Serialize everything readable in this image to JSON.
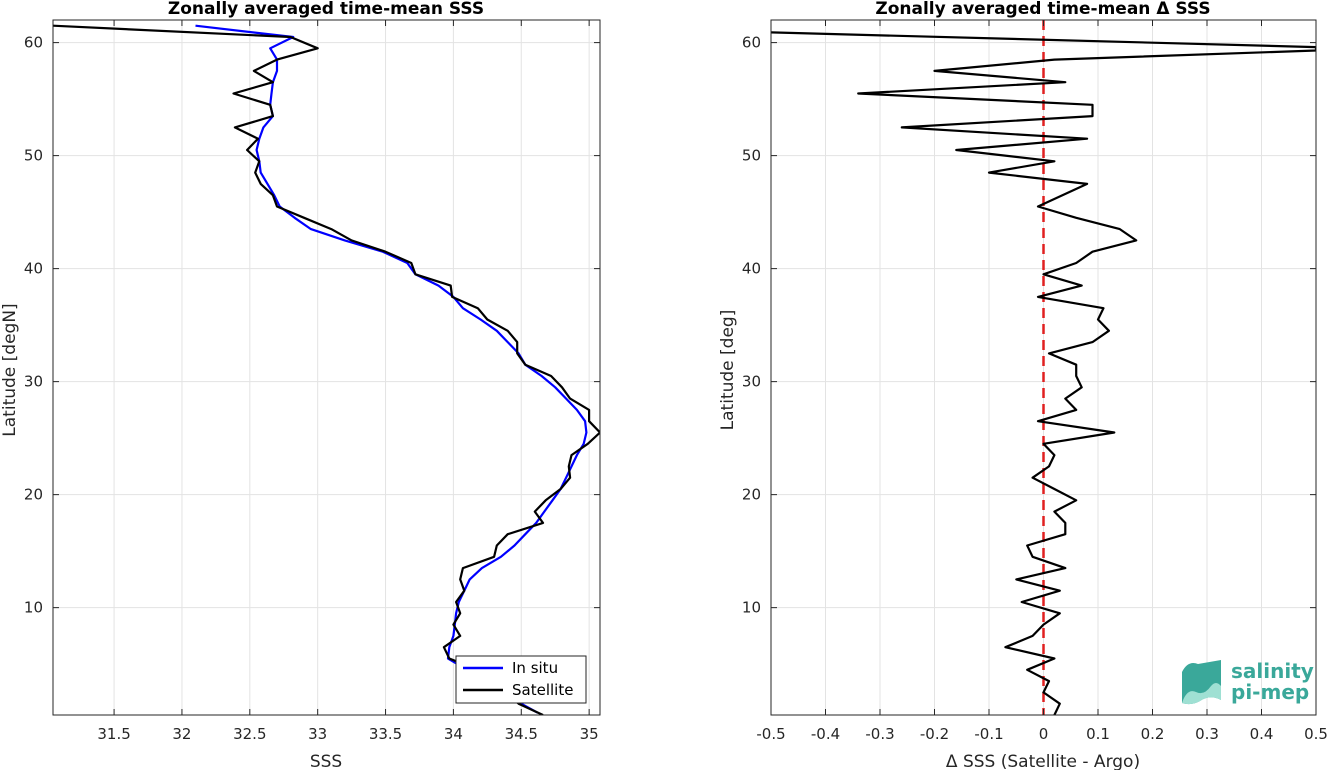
{
  "chart_data": [
    {
      "type": "line",
      "title": "Zonally averaged time-mean SSS",
      "xlabel": "SSS",
      "ylabel": "Latitude [degN]",
      "xlim": [
        31.05,
        35.08
      ],
      "ylim": [
        0.5,
        62
      ],
      "x_ticks": [
        "31.5",
        "32",
        "32.5",
        "33",
        "33.5",
        "34",
        "34.5",
        "35"
      ],
      "y_ticks": [
        "10",
        "20",
        "30",
        "40",
        "50",
        "60"
      ],
      "grid": true,
      "legend_position": "bottom-right",
      "series": [
        {
          "name": "In situ",
          "color": "#0000ff",
          "points": [
            [
              32.1,
              61.5
            ],
            [
              32.82,
              60.5
            ],
            [
              32.65,
              59.5
            ],
            [
              32.7,
              58.5
            ],
            [
              32.7,
              57.5
            ],
            [
              32.67,
              56.5
            ],
            [
              32.66,
              55.5
            ],
            [
              32.65,
              54.5
            ],
            [
              32.67,
              53.5
            ],
            [
              32.6,
              52.5
            ],
            [
              32.57,
              51.5
            ],
            [
              32.55,
              50.5
            ],
            [
              32.57,
              49.5
            ],
            [
              32.58,
              48.5
            ],
            [
              32.63,
              47.5
            ],
            [
              32.68,
              46.5
            ],
            [
              32.72,
              45.5
            ],
            [
              32.83,
              44.5
            ],
            [
              32.95,
              43.5
            ],
            [
              33.2,
              42.5
            ],
            [
              33.48,
              41.5
            ],
            [
              33.66,
              40.5
            ],
            [
              33.72,
              39.5
            ],
            [
              33.89,
              38.5
            ],
            [
              34.0,
              37.5
            ],
            [
              34.07,
              36.5
            ],
            [
              34.2,
              35.5
            ],
            [
              34.32,
              34.5
            ],
            [
              34.4,
              33.5
            ],
            [
              34.48,
              32.5
            ],
            [
              34.53,
              31.5
            ],
            [
              34.65,
              30.5
            ],
            [
              34.75,
              29.5
            ],
            [
              34.83,
              28.5
            ],
            [
              34.91,
              27.5
            ],
            [
              34.97,
              26.5
            ],
            [
              34.98,
              25.5
            ],
            [
              34.96,
              24.5
            ],
            [
              34.91,
              23.5
            ],
            [
              34.87,
              22.5
            ],
            [
              34.83,
              21.5
            ],
            [
              34.79,
              20.5
            ],
            [
              34.73,
              19.5
            ],
            [
              34.67,
              18.5
            ],
            [
              34.61,
              17.5
            ],
            [
              34.53,
              16.5
            ],
            [
              34.45,
              15.5
            ],
            [
              34.35,
              14.5
            ],
            [
              34.21,
              13.5
            ],
            [
              34.12,
              12.5
            ],
            [
              34.08,
              11.5
            ],
            [
              34.04,
              10.5
            ],
            [
              34.02,
              9.5
            ],
            [
              34.01,
              8.5
            ],
            [
              34.0,
              7.5
            ],
            [
              33.97,
              6.5
            ],
            [
              33.96,
              5.5
            ],
            [
              34.1,
              4.5
            ],
            [
              34.22,
              3.5
            ],
            [
              34.38,
              2.5
            ],
            [
              34.5,
              1.5
            ],
            [
              34.62,
              0.7
            ]
          ]
        },
        {
          "name": "Satellite",
          "color": "#000000",
          "points": [
            [
              31.05,
              61.5
            ],
            [
              32.8,
              60.5
            ],
            [
              33.0,
              59.5
            ],
            [
              32.7,
              58.5
            ],
            [
              32.53,
              57.5
            ],
            [
              32.67,
              56.5
            ],
            [
              32.38,
              55.5
            ],
            [
              32.65,
              54.5
            ],
            [
              32.67,
              53.5
            ],
            [
              32.39,
              52.5
            ],
            [
              32.56,
              51.5
            ],
            [
              32.48,
              50.5
            ],
            [
              32.57,
              49.5
            ],
            [
              32.54,
              48.5
            ],
            [
              32.58,
              47.5
            ],
            [
              32.67,
              46.5
            ],
            [
              32.7,
              45.5
            ],
            [
              32.9,
              44.5
            ],
            [
              33.1,
              43.5
            ],
            [
              33.25,
              42.5
            ],
            [
              33.5,
              41.5
            ],
            [
              33.69,
              40.5
            ],
            [
              33.72,
              39.5
            ],
            [
              33.98,
              38.5
            ],
            [
              33.99,
              37.5
            ],
            [
              34.18,
              36.5
            ],
            [
              34.25,
              35.5
            ],
            [
              34.4,
              34.5
            ],
            [
              34.47,
              33.5
            ],
            [
              34.47,
              32.5
            ],
            [
              34.53,
              31.5
            ],
            [
              34.72,
              30.5
            ],
            [
              34.8,
              29.5
            ],
            [
              34.86,
              28.5
            ],
            [
              35.0,
              27.5
            ],
            [
              35.0,
              26.5
            ],
            [
              35.08,
              25.5
            ],
            [
              34.99,
              24.5
            ],
            [
              34.87,
              23.5
            ],
            [
              34.85,
              22.5
            ],
            [
              34.86,
              21.5
            ],
            [
              34.79,
              20.5
            ],
            [
              34.68,
              19.5
            ],
            [
              34.6,
              18.5
            ],
            [
              34.66,
              17.5
            ],
            [
              34.4,
              16.5
            ],
            [
              34.32,
              15.5
            ],
            [
              34.3,
              14.5
            ],
            [
              34.07,
              13.5
            ],
            [
              34.05,
              12.5
            ],
            [
              34.08,
              11.5
            ],
            [
              34.02,
              10.5
            ],
            [
              34.05,
              9.5
            ],
            [
              34.0,
              8.5
            ],
            [
              34.05,
              7.5
            ],
            [
              33.93,
              6.5
            ],
            [
              33.97,
              5.5
            ],
            [
              34.18,
              4.5
            ],
            [
              34.3,
              3.5
            ],
            [
              34.38,
              2.5
            ],
            [
              34.48,
              1.5
            ],
            [
              34.66,
              0.5
            ]
          ]
        }
      ]
    },
    {
      "type": "line",
      "title": "Zonally averaged time-mean Δ SSS",
      "xlabel": "Δ SSS (Satellite - Argo)",
      "ylabel": "Latitude [deg]",
      "xlim": [
        -0.5,
        0.5
      ],
      "ylim": [
        0.5,
        62
      ],
      "x_ticks": [
        "-0.5",
        "-0.4",
        "-0.3",
        "-0.2",
        "-0.1",
        "0",
        "0.1",
        "0.2",
        "0.3",
        "0.4",
        "0.5"
      ],
      "y_ticks": [
        "10",
        "20",
        "30",
        "40",
        "50",
        "60"
      ],
      "grid": true,
      "reference_line": {
        "x": 0,
        "color": "#e02020",
        "style": "dashed"
      },
      "series": [
        {
          "color": "#000000",
          "points": [
            [
              -0.5,
              60.9
            ],
            [
              0.5,
              59.6
            ],
            [
              0.5,
              59.3
            ],
            [
              0.02,
              58.5
            ],
            [
              -0.2,
              57.5
            ],
            [
              0.04,
              56.5
            ],
            [
              -0.34,
              55.5
            ],
            [
              0.09,
              54.5
            ],
            [
              0.09,
              53.5
            ],
            [
              -0.26,
              52.5
            ],
            [
              0.08,
              51.5
            ],
            [
              -0.16,
              50.5
            ],
            [
              0.02,
              49.5
            ],
            [
              -0.1,
              48.5
            ],
            [
              0.08,
              47.5
            ],
            [
              -0.01,
              45.5
            ],
            [
              0.06,
              44.5
            ],
            [
              0.14,
              43.5
            ],
            [
              0.17,
              42.5
            ],
            [
              0.09,
              41.5
            ],
            [
              0.06,
              40.5
            ],
            [
              0.0,
              39.5
            ],
            [
              0.07,
              38.5
            ],
            [
              -0.01,
              37.5
            ],
            [
              0.11,
              36.5
            ],
            [
              0.1,
              35.5
            ],
            [
              0.12,
              34.5
            ],
            [
              0.09,
              33.5
            ],
            [
              0.01,
              32.5
            ],
            [
              0.06,
              31.5
            ],
            [
              0.06,
              30.5
            ],
            [
              0.07,
              29.5
            ],
            [
              0.04,
              28.5
            ],
            [
              0.06,
              27.5
            ],
            [
              -0.01,
              26.5
            ],
            [
              0.13,
              25.5
            ],
            [
              0.0,
              24.5
            ],
            [
              0.02,
              23.5
            ],
            [
              0.01,
              22.5
            ],
            [
              -0.02,
              21.5
            ],
            [
              0.02,
              20.5
            ],
            [
              0.06,
              19.5
            ],
            [
              0.02,
              18.5
            ],
            [
              0.04,
              17.5
            ],
            [
              0.04,
              16.5
            ],
            [
              -0.03,
              15.5
            ],
            [
              -0.02,
              14.5
            ],
            [
              0.04,
              13.5
            ],
            [
              -0.05,
              12.5
            ],
            [
              0.03,
              11.5
            ],
            [
              -0.04,
              10.5
            ],
            [
              0.03,
              9.5
            ],
            [
              0.0,
              8.5
            ],
            [
              -0.02,
              7.5
            ],
            [
              -0.07,
              6.5
            ],
            [
              0.02,
              5.5
            ],
            [
              -0.03,
              4.5
            ],
            [
              0.01,
              3.5
            ],
            [
              0.0,
              2.5
            ],
            [
              0.03,
              1.5
            ],
            [
              0.02,
              0.5
            ]
          ]
        }
      ]
    }
  ],
  "logo": {
    "line1": "salinity",
    "line2": "pi-mep",
    "color": "#3aa89a"
  }
}
